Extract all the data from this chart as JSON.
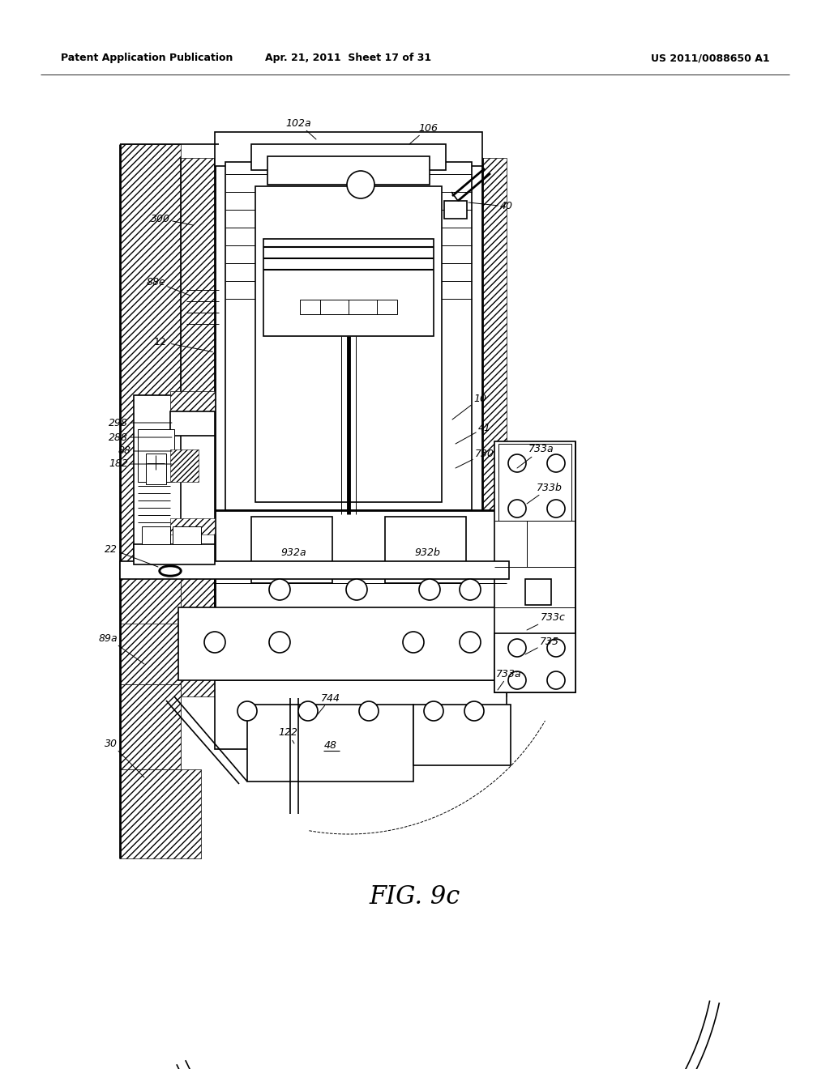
{
  "header_left": "Patent Application Publication",
  "header_center": "Apr. 21, 2011  Sheet 17 of 31",
  "header_right": "US 2011/0088650 A1",
  "caption": "FIG. 9c",
  "bg_color": "#ffffff",
  "line_color": "#000000",
  "lw_main": 1.2,
  "lw_thick": 2.0,
  "lw_thin": 0.7,
  "label_fs": 9
}
